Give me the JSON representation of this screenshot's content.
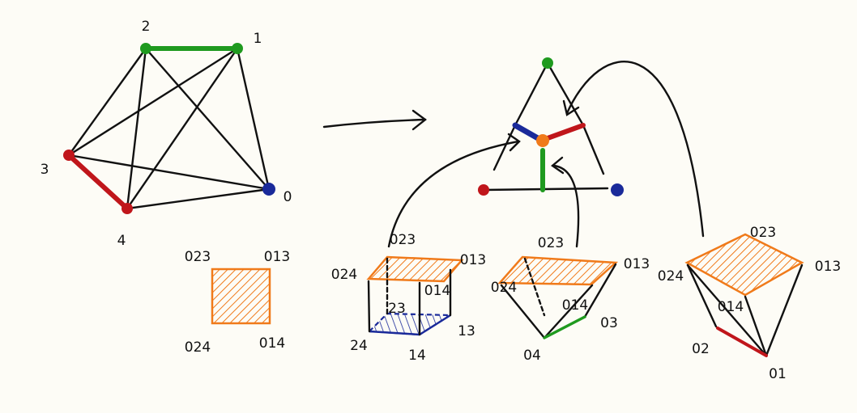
{
  "left_graph": {
    "nodes": [
      "2",
      "1",
      "3",
      "4",
      "0"
    ]
  },
  "square": {
    "labels": [
      "023",
      "013",
      "024",
      "014"
    ]
  },
  "cube": {
    "labels": [
      "023",
      "013",
      "024",
      "014",
      "23",
      "24",
      "14",
      "13"
    ]
  },
  "pyramid_a": {
    "labels": [
      "023",
      "013",
      "024",
      "014",
      "03",
      "04"
    ]
  },
  "pyramid_b": {
    "labels": [
      "023",
      "013",
      "024",
      "014",
      "02",
      "01"
    ]
  }
}
